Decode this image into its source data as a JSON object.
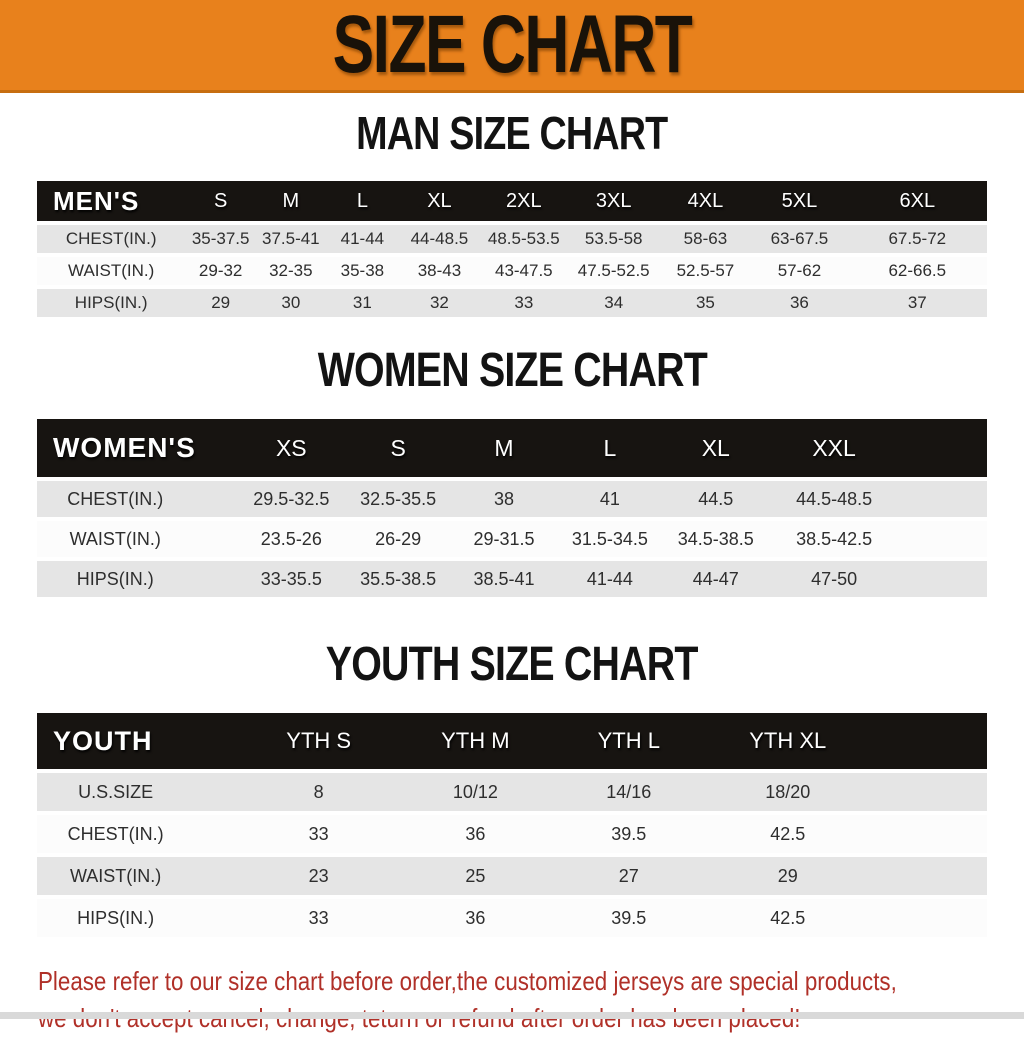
{
  "banner": {
    "title": "SIZE CHART"
  },
  "colors": {
    "banner_bg": "#e8811c",
    "table_header_bg": "#171411",
    "row_alt_bg": "#e5e5e5",
    "footer_text": "#b03028"
  },
  "sections": [
    {
      "title": "MAN SIZE CHART",
      "corner_label": "MEN'S",
      "columns": [
        "S",
        "M",
        "L",
        "XL",
        "2XL",
        "3XL",
        "4XL",
        "5XL",
        "6XL"
      ],
      "rows": [
        {
          "label": "CHEST(IN.)",
          "values": [
            "35-37.5",
            "37.5-41",
            "41-44",
            "44-48.5",
            "48.5-53.5",
            "53.5-58",
            "58-63",
            "63-67.5",
            "67.5-72"
          ]
        },
        {
          "label": "WAIST(IN.)",
          "values": [
            "29-32",
            "32-35",
            "35-38",
            "38-43",
            "43-47.5",
            "47.5-52.5",
            "52.5-57",
            "57-62",
            "62-66.5"
          ]
        },
        {
          "label": "HIPS(IN.)",
          "values": [
            "29",
            "30",
            "31",
            "32",
            "33",
            "34",
            "35",
            "36",
            "37"
          ]
        }
      ]
    },
    {
      "title": "WOMEN SIZE CHART",
      "corner_label": "WOMEN'S",
      "columns": [
        "XS",
        "S",
        "M",
        "L",
        "XL",
        "XXL"
      ],
      "rows": [
        {
          "label": "CHEST(IN.)",
          "values": [
            "29.5-32.5",
            "32.5-35.5",
            "38",
            "41",
            "44.5",
            "44.5-48.5"
          ]
        },
        {
          "label": "WAIST(IN.)",
          "values": [
            "23.5-26",
            "26-29",
            "29-31.5",
            "31.5-34.5",
            "34.5-38.5",
            "38.5-42.5"
          ]
        },
        {
          "label": "HIPS(IN.)",
          "values": [
            "33-35.5",
            "35.5-38.5",
            "38.5-41",
            "41-44",
            "44-47",
            "47-50"
          ]
        }
      ]
    },
    {
      "title": "YOUTH SIZE CHART",
      "corner_label": "YOUTH",
      "columns": [
        "YTH S",
        "YTH M",
        "YTH L",
        "YTH XL"
      ],
      "rows": [
        {
          "label": "U.S.SIZE",
          "values": [
            "8",
            "10/12",
            "14/16",
            "18/20"
          ]
        },
        {
          "label": "CHEST(IN.)",
          "values": [
            "33",
            "36",
            "39.5",
            "42.5"
          ]
        },
        {
          "label": "WAIST(IN.)",
          "values": [
            "23",
            "25",
            "27",
            "29"
          ]
        },
        {
          "label": "HIPS(IN.)",
          "values": [
            "33",
            "36",
            "39.5",
            "42.5"
          ]
        }
      ]
    }
  ],
  "footer": {
    "line1": "Please refer to our size chart before order,the customized jerseys are special products,",
    "line2": "we don't accept cancel, change, teturn or refund after order has been placed!"
  }
}
